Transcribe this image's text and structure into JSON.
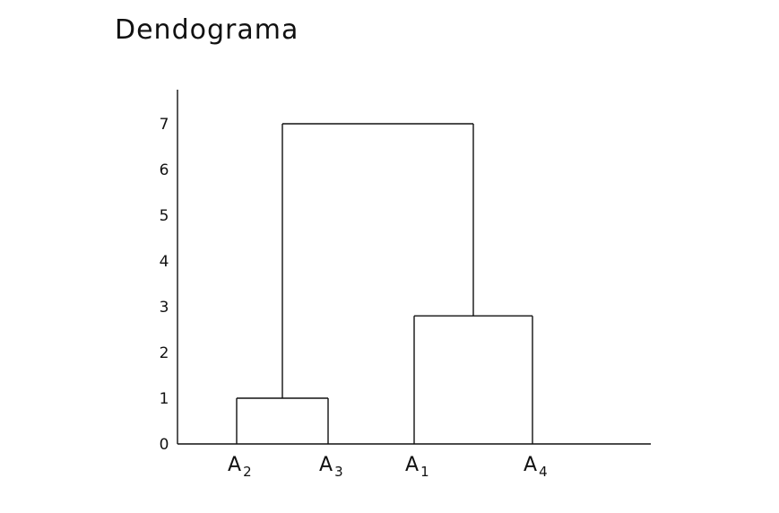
{
  "title": "Dendograma",
  "colors": {
    "ink": "#111111",
    "background": "#ffffff"
  },
  "axis": {
    "ylim": [
      0,
      7
    ],
    "ticks": [
      "0",
      "1",
      "2",
      "3",
      "4",
      "5",
      "6",
      "7"
    ]
  },
  "leaves": [
    {
      "id": "A2",
      "main": "A",
      "sub": "2"
    },
    {
      "id": "A3",
      "main": "A",
      "sub": "3"
    },
    {
      "id": "A1",
      "main": "A",
      "sub": "1"
    },
    {
      "id": "A4",
      "main": "A",
      "sub": "4"
    }
  ],
  "merges": [
    {
      "left": "A2",
      "right": "A3",
      "height": 1
    },
    {
      "left": "A1",
      "right": "A4",
      "height": 2.8
    },
    {
      "left": "A2+A3",
      "right": "A1+A4",
      "height": 7
    }
  ]
}
